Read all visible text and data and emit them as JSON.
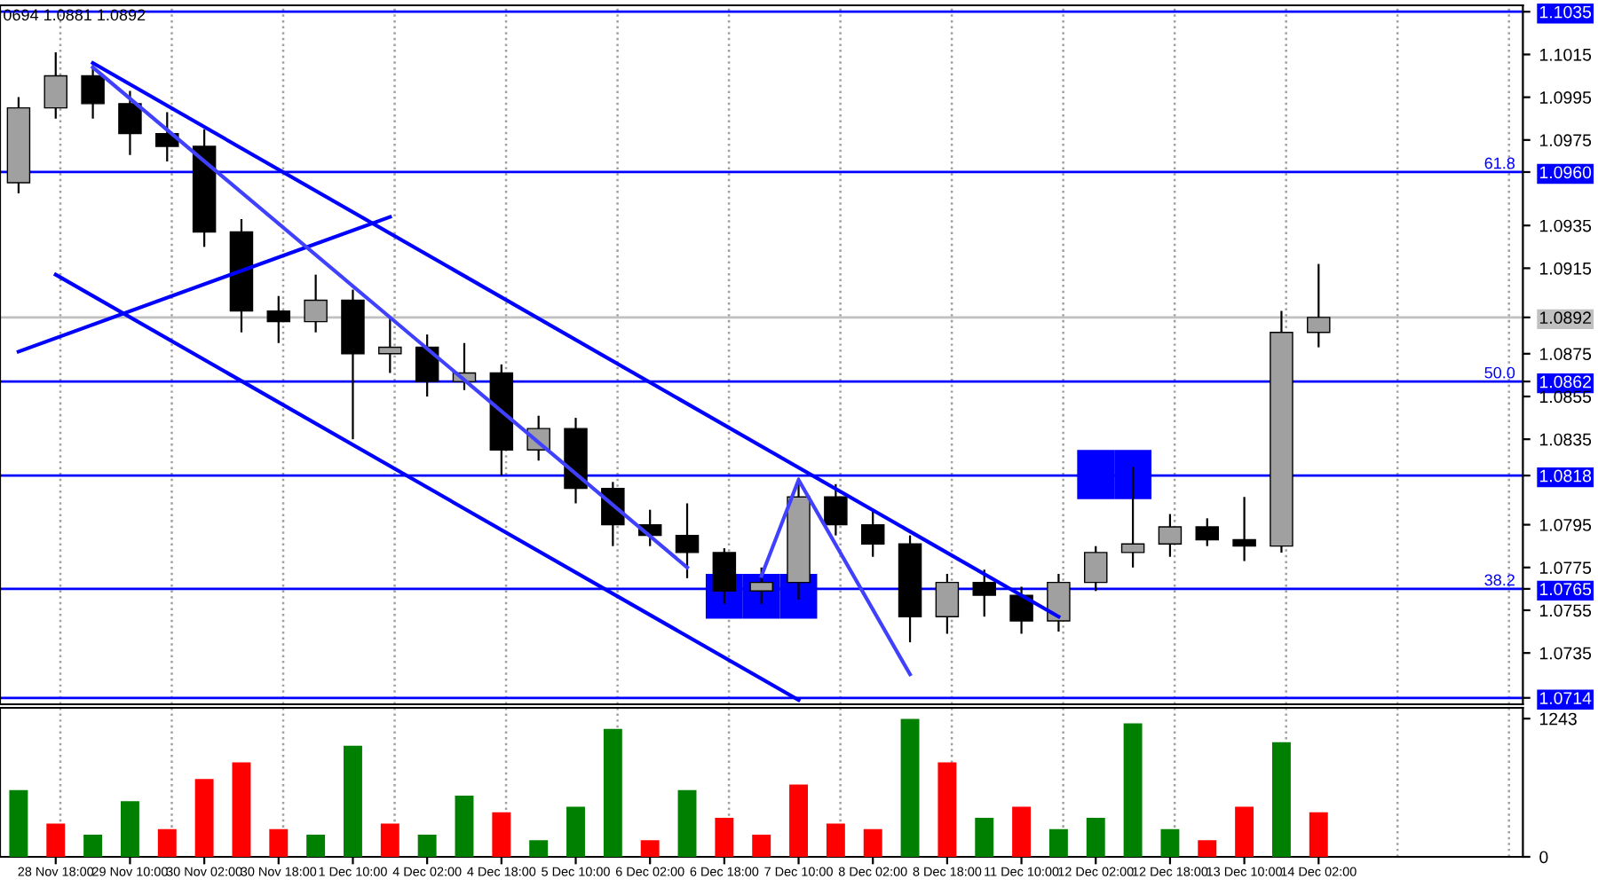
{
  "chart_data": [
    {
      "type": "candlestick",
      "tick_labels": "y",
      "grid": "x",
      "legend": false,
      "annotations": [
        "0694 1.0881 1.0892",
        {
          "text": "61.8",
          "y": 1.096
        },
        {
          "text": "50.0",
          "y": 1.0862
        },
        {
          "text": "38.2",
          "y": 1.0765
        }
      ],
      "categories": [
        null,
        null,
        null,
        null,
        null,
        null,
        null,
        null,
        null,
        null,
        null,
        null,
        null,
        null,
        null,
        null,
        null,
        null,
        null,
        null,
        null,
        null,
        null,
        null,
        null,
        null,
        null,
        null,
        null,
        null,
        null,
        null,
        null,
        null,
        null,
        null,
        null,
        null,
        null,
        null,
        null
      ],
      "ohlc": [
        [
          1.0955,
          1.0995,
          1.095,
          1.099
        ],
        [
          1.099,
          1.1016,
          1.0985,
          1.1005
        ],
        [
          1.1005,
          1.101,
          1.0985,
          1.0992
        ],
        [
          1.0992,
          1.0998,
          1.0968,
          1.0978
        ],
        [
          1.0978,
          1.0988,
          1.0965,
          1.0972
        ],
        [
          1.0972,
          1.098,
          1.0925,
          1.0932
        ],
        [
          1.0932,
          1.0938,
          1.0885,
          1.0895
        ],
        [
          1.0895,
          1.0902,
          1.088,
          1.089
        ],
        [
          1.089,
          1.0912,
          1.0885,
          1.09
        ],
        [
          1.09,
          1.0905,
          1.0835,
          1.0875
        ],
        [
          1.0875,
          1.0892,
          1.0866,
          1.0878
        ],
        [
          1.0878,
          1.0884,
          1.0855,
          1.0862
        ],
        [
          1.0862,
          1.088,
          1.0858,
          1.0866
        ],
        [
          1.0866,
          1.087,
          1.0818,
          1.083
        ],
        [
          1.083,
          1.0846,
          1.0825,
          1.084
        ],
        [
          1.084,
          1.0845,
          1.0805,
          1.0812
        ],
        [
          1.0812,
          1.0815,
          1.0785,
          1.0795
        ],
        [
          1.0795,
          1.0802,
          1.0785,
          1.079
        ],
        [
          1.079,
          1.0805,
          1.077,
          1.0782
        ],
        [
          1.0782,
          1.0784,
          1.0758,
          1.0764
        ],
        [
          1.0764,
          1.0775,
          1.0758,
          1.0768
        ],
        [
          1.0768,
          1.0817,
          1.076,
          1.0808
        ],
        [
          1.0808,
          1.0814,
          1.079,
          1.0795
        ],
        [
          1.0795,
          1.0802,
          1.078,
          1.0786
        ],
        [
          1.0786,
          1.079,
          1.074,
          1.0752
        ],
        [
          1.0752,
          1.0772,
          1.0744,
          1.0768
        ],
        [
          1.0768,
          1.0774,
          1.0752,
          1.0762
        ],
        [
          1.0762,
          1.0766,
          1.0744,
          1.075
        ],
        [
          1.075,
          1.0772,
          1.0745,
          1.0768
        ],
        [
          1.0768,
          1.0785,
          1.0764,
          1.0782
        ],
        [
          1.0782,
          1.0822,
          1.0775,
          1.0786
        ],
        [
          1.0786,
          1.08,
          1.078,
          1.0794
        ],
        [
          1.0794,
          1.0798,
          1.0785,
          1.0788
        ],
        [
          1.0788,
          1.0808,
          1.0778,
          1.0785
        ],
        [
          1.0785,
          1.0895,
          1.0782,
          1.0885
        ],
        [
          1.0885,
          1.0917,
          1.0878,
          1.0892
        ],
        null,
        null,
        null,
        null,
        null
      ],
      "colors": [
        "#a0a0a0",
        "#a0a0a0",
        "#000000",
        "#000000",
        "#000000",
        "#000000",
        "#000000",
        "#000000",
        "#a0a0a0",
        "#000000",
        "#a0a0a0",
        "#000000",
        "#a0a0a0",
        "#000000",
        "#a0a0a0",
        "#000000",
        "#000000",
        "#000000",
        "#000000",
        "#000000",
        "#a0a0a0",
        "#a0a0a0",
        "#000000",
        "#000000",
        "#000000",
        "#a0a0a0",
        "#000000",
        "#000000",
        "#a0a0a0",
        "#a0a0a0",
        "#a0a0a0",
        "#a0a0a0",
        "#000000",
        "#000000",
        "#a0a0a0",
        "#a0a0a0",
        null,
        null,
        null,
        null,
        null
      ],
      "series": [
        {
          "type": "line",
          "color": "#0000ff",
          "values": [
            null,
            null,
            1.1011,
            null,
            null,
            null,
            null,
            null,
            null,
            null,
            null,
            null,
            null,
            null,
            null,
            null,
            null,
            null,
            null,
            null,
            null,
            null,
            null,
            null,
            null,
            null,
            null,
            null,
            1.0752,
            null,
            null,
            null,
            null,
            null,
            null,
            null,
            null,
            null,
            null,
            null,
            null
          ]
        },
        {
          "type": "line",
          "color": "#0000ff",
          "values": [
            null,
            1.0912,
            null,
            null,
            null,
            null,
            null,
            null,
            null,
            null,
            null,
            null,
            null,
            null,
            null,
            null,
            null,
            null,
            null,
            null,
            null,
            1.0713,
            null,
            null,
            null,
            null,
            null,
            null,
            null,
            null,
            null,
            null,
            null,
            null,
            null,
            null,
            null,
            null,
            null,
            null,
            null
          ]
        },
        {
          "type": "line",
          "color": "#0000ff",
          "values": [
            1.0876,
            null,
            null,
            null,
            null,
            null,
            null,
            null,
            null,
            null,
            1.0939,
            null,
            null,
            null,
            null,
            null,
            null,
            null,
            null,
            null,
            null,
            null,
            null,
            null,
            null,
            null,
            null,
            null,
            null,
            null,
            null,
            null,
            null,
            null,
            null,
            null,
            null,
            null,
            null,
            null,
            null
          ]
        },
        {
          "type": "line",
          "color": "#4040ff",
          "values": [
            null,
            null,
            1.1009,
            null,
            null,
            null,
            null,
            null,
            null,
            null,
            null,
            null,
            null,
            null,
            null,
            null,
            null,
            null,
            1.0775,
            null,
            null,
            null,
            null,
            null,
            null,
            null,
            null,
            null,
            null,
            null,
            null,
            null,
            null,
            null,
            null,
            null,
            null,
            null,
            null,
            null,
            null
          ]
        },
        {
          "type": "line",
          "color": "#4040ff",
          "values": [
            null,
            null,
            null,
            null,
            null,
            null,
            null,
            null,
            null,
            null,
            null,
            null,
            null,
            null,
            null,
            null,
            null,
            null,
            null,
            null,
            1.0771,
            1.0816,
            null,
            null,
            1.0725,
            null,
            null,
            null,
            null,
            null,
            null,
            null,
            null,
            null,
            null,
            null,
            null,
            null,
            null,
            null,
            null
          ]
        },
        {
          "type": "bar",
          "color": "#0000ff",
          "values": [
            null,
            null,
            null,
            null,
            null,
            null,
            null,
            null,
            null,
            null,
            null,
            null,
            null,
            null,
            null,
            null,
            null,
            null,
            null,
            0.0021,
            0.0021,
            0.0021,
            null,
            null,
            null,
            null,
            null,
            null,
            null,
            null,
            null,
            null,
            null,
            null,
            null,
            null,
            null,
            null,
            null,
            null,
            null
          ],
          "base": [
            null,
            null,
            null,
            null,
            null,
            null,
            null,
            null,
            null,
            null,
            null,
            null,
            null,
            null,
            null,
            null,
            null,
            null,
            null,
            1.0751,
            1.0751,
            1.0751,
            null,
            null,
            null,
            null,
            null,
            null,
            null,
            null,
            null,
            null,
            null,
            null,
            null,
            null,
            null,
            null,
            null,
            null,
            null
          ]
        },
        {
          "type": "bar",
          "color": "#0000ff",
          "values": [
            null,
            null,
            null,
            null,
            null,
            null,
            null,
            null,
            null,
            null,
            null,
            null,
            null,
            null,
            null,
            null,
            null,
            null,
            null,
            null,
            null,
            null,
            null,
            null,
            null,
            null,
            null,
            null,
            null,
            0.0023,
            0.0023,
            null,
            null,
            null,
            null,
            null,
            null,
            null,
            null,
            null,
            null
          ],
          "base": [
            null,
            null,
            null,
            null,
            null,
            null,
            null,
            null,
            null,
            null,
            null,
            null,
            null,
            null,
            null,
            null,
            null,
            null,
            null,
            null,
            null,
            null,
            null,
            null,
            null,
            null,
            null,
            null,
            null,
            1.0807,
            1.0807,
            null,
            null,
            null,
            null,
            null,
            null,
            null,
            null,
            null,
            null
          ]
        }
      ],
      "ylim": [
        1.0711,
        1.1038
      ],
      "yticks": [
        {
          "value": 1.1035,
          "label": "1.1035"
        },
        1.1015,
        1.0995,
        1.0975,
        {
          "value": 1.096,
          "label": "1.0960"
        },
        1.0935,
        1.0915,
        {
          "value": 1.0892,
          "label": "1.0892"
        },
        1.0875,
        {
          "value": 1.0862,
          "label": "1.0862"
        },
        1.0855,
        1.0835,
        {
          "value": 1.0818,
          "label": "1.0818"
        },
        1.0795,
        1.0775,
        {
          "value": 1.0765,
          "label": "1.0765"
        },
        1.0755,
        1.0735,
        {
          "value": 1.0714,
          "label": "1.0714"
        }
      ],
      "ref_lines": [
        {
          "axis": "y",
          "value": 1.1035,
          "color": "#0000ff"
        },
        {
          "axis": "y",
          "value": 1.096,
          "color": "#0000ff"
        },
        {
          "axis": "y",
          "value": 1.0892,
          "color": "#c0c0c0"
        },
        {
          "axis": "y",
          "value": 1.0862,
          "color": "#0000ff"
        },
        {
          "axis": "y",
          "value": 1.0818,
          "color": "#0000ff"
        },
        {
          "axis": "y",
          "value": 1.0765,
          "color": "#0000ff"
        },
        {
          "axis": "y",
          "value": 1.0714,
          "color": "#0000ff"
        }
      ]
    },
    {
      "type": "bar",
      "grid": "x",
      "legend": false,
      "categories": [
        null,
        "28 Nov 18:00",
        null,
        "29 Nov 10:00",
        null,
        "30 Nov 02:00",
        null,
        "30 Nov 18:00",
        null,
        "1 Dec 10:00",
        null,
        "4 Dec 02:00",
        null,
        "4 Dec 18:00",
        null,
        "5 Dec 10:00",
        null,
        "6 Dec 02:00",
        null,
        "6 Dec 18:00",
        null,
        "7 Dec 10:00",
        null,
        "8 Dec 02:00",
        null,
        "8 Dec 18:00",
        null,
        "11 Dec 10:00",
        null,
        "12 Dec 02:00",
        null,
        "12 Dec 18:00",
        null,
        "13 Dec 10:00",
        null,
        "14 Dec 02:00",
        null,
        null,
        null,
        null,
        null
      ],
      "values": [
        600,
        300,
        200,
        500,
        250,
        700,
        850,
        250,
        200,
        1000,
        300,
        200,
        550,
        400,
        150,
        450,
        1150,
        150,
        600,
        350,
        200,
        650,
        300,
        250,
        1240,
        850,
        350,
        450,
        250,
        350,
        1200,
        250,
        150,
        450,
        1030,
        400,
        null,
        null,
        null,
        null,
        null
      ],
      "colors": [
        "#008000",
        "#ff0000",
        "#008000",
        "#008000",
        "#ff0000",
        "#ff0000",
        "#ff0000",
        "#ff0000",
        "#008000",
        "#008000",
        "#ff0000",
        "#008000",
        "#008000",
        "#ff0000",
        "#008000",
        "#008000",
        "#008000",
        "#ff0000",
        "#008000",
        "#ff0000",
        "#ff0000",
        "#ff0000",
        "#ff0000",
        "#ff0000",
        "#008000",
        "#ff0000",
        "#008000",
        "#ff0000",
        "#008000",
        "#008000",
        "#008000",
        "#008000",
        "#ff0000",
        "#ff0000",
        "#008000",
        "#ff0000",
        null,
        null,
        null,
        null,
        null
      ],
      "ylim": [
        0,
        1340
      ],
      "yticks": [
        0,
        1243
      ]
    }
  ]
}
